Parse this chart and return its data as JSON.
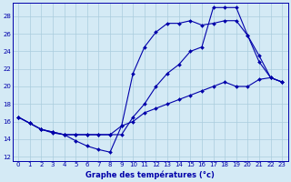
{
  "line_min": {
    "x": [
      0,
      1,
      2,
      3,
      4,
      5,
      6,
      7,
      8,
      9,
      10,
      11,
      12,
      13,
      14,
      15,
      16,
      17,
      18,
      19,
      20,
      21,
      22,
      23
    ],
    "y": [
      16.5,
      15.8,
      15.1,
      14.7,
      14.5,
      13.8,
      13.2,
      12.8,
      12.5,
      15.5,
      16.0,
      17.0,
      17.5,
      18.0,
      18.5,
      19.0,
      19.5,
      20.0,
      20.5,
      20.0,
      20.0,
      20.8,
      21.0,
      20.5
    ]
  },
  "line_mid": {
    "x": [
      0,
      1,
      2,
      3,
      4,
      5,
      6,
      7,
      8,
      9,
      10,
      11,
      12,
      13,
      14,
      15,
      16,
      17,
      18,
      19,
      20,
      21,
      22,
      23
    ],
    "y": [
      16.5,
      15.8,
      15.1,
      14.8,
      14.5,
      14.5,
      14.5,
      14.5,
      14.5,
      15.5,
      21.5,
      24.5,
      26.2,
      27.2,
      27.2,
      27.5,
      27.0,
      27.2,
      27.5,
      27.5,
      25.8,
      22.8,
      21.0,
      20.5
    ]
  },
  "line_max": {
    "x": [
      0,
      1,
      2,
      3,
      4,
      5,
      6,
      7,
      8,
      9,
      10,
      11,
      12,
      13,
      14,
      15,
      16,
      17,
      18,
      19,
      20,
      21,
      22,
      23
    ],
    "y": [
      16.5,
      15.8,
      15.1,
      14.8,
      14.5,
      14.5,
      14.5,
      14.5,
      14.5,
      14.5,
      16.5,
      18.0,
      20.0,
      21.5,
      22.5,
      24.0,
      24.5,
      29.0,
      29.0,
      29.0,
      25.8,
      23.5,
      21.0,
      20.5
    ]
  },
  "color": "#0000aa",
  "bg_color": "#d4eaf5",
  "grid_color": "#aaccdd",
  "xlabel": "Graphe des températures (°c)",
  "xlim": [
    -0.5,
    23.5
  ],
  "ylim": [
    11.5,
    29.5
  ],
  "yticks": [
    12,
    14,
    16,
    18,
    20,
    22,
    24,
    26,
    28
  ],
  "xticks": [
    0,
    1,
    2,
    3,
    4,
    5,
    6,
    7,
    8,
    9,
    10,
    11,
    12,
    13,
    14,
    15,
    16,
    17,
    18,
    19,
    20,
    21,
    22,
    23
  ],
  "markersize": 2.0,
  "linewidth": 0.8
}
